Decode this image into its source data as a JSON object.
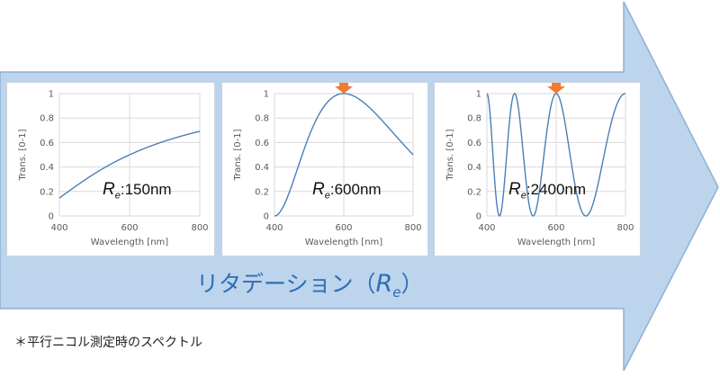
{
  "colors": {
    "arrow_fill": "#bcd4ec",
    "arrow_stroke": "#8fb1d5",
    "curve": "#4a7fb5",
    "grid": "#d9d9d9",
    "marker": "#ef7d31",
    "banner_text": "#2f6db5"
  },
  "banner": {
    "text": "リタデーション（",
    "symbol": "R",
    "subscript": "e",
    "close": "）"
  },
  "footnote": "＊平行ニコル測定時のスペクトル",
  "chart_data": [
    {
      "type": "line",
      "xlabel": "Wavelength [nm]",
      "ylabel": "Trans. [0-1]",
      "xlim": [
        400,
        800
      ],
      "ylim": [
        0,
        1
      ],
      "xticks": [
        400,
        600,
        800
      ],
      "yticks": [
        0,
        0.2,
        0.4,
        0.6,
        0.8,
        1
      ],
      "grid": true,
      "retardation_nm": 150,
      "label": {
        "symbol": "R",
        "subscript": "e",
        "value": ":150nm"
      },
      "marker_at_nm": null
    },
    {
      "type": "line",
      "xlabel": "Wavelength [nm]",
      "ylabel": "Trans. [0-1]",
      "xlim": [
        400,
        800
      ],
      "ylim": [
        0,
        1
      ],
      "xticks": [
        400,
        600,
        800
      ],
      "yticks": [
        0,
        0.2,
        0.4,
        0.6,
        0.8,
        1
      ],
      "grid": true,
      "retardation_nm": 600,
      "label": {
        "symbol": "R",
        "subscript": "e",
        "value": ":600nm"
      },
      "marker_at_nm": 600
    },
    {
      "type": "line",
      "xlabel": "Wavelength [nm]",
      "ylabel": "Trans. [0-1]",
      "xlim": [
        400,
        800
      ],
      "ylim": [
        0,
        1
      ],
      "xticks": [
        400,
        600,
        800
      ],
      "yticks": [
        0,
        0.2,
        0.4,
        0.6,
        0.8,
        1
      ],
      "grid": true,
      "retardation_nm": 2400,
      "label": {
        "symbol": "R",
        "subscript": "e",
        "value": ":2400nm"
      },
      "marker_at_nm": 600
    }
  ]
}
